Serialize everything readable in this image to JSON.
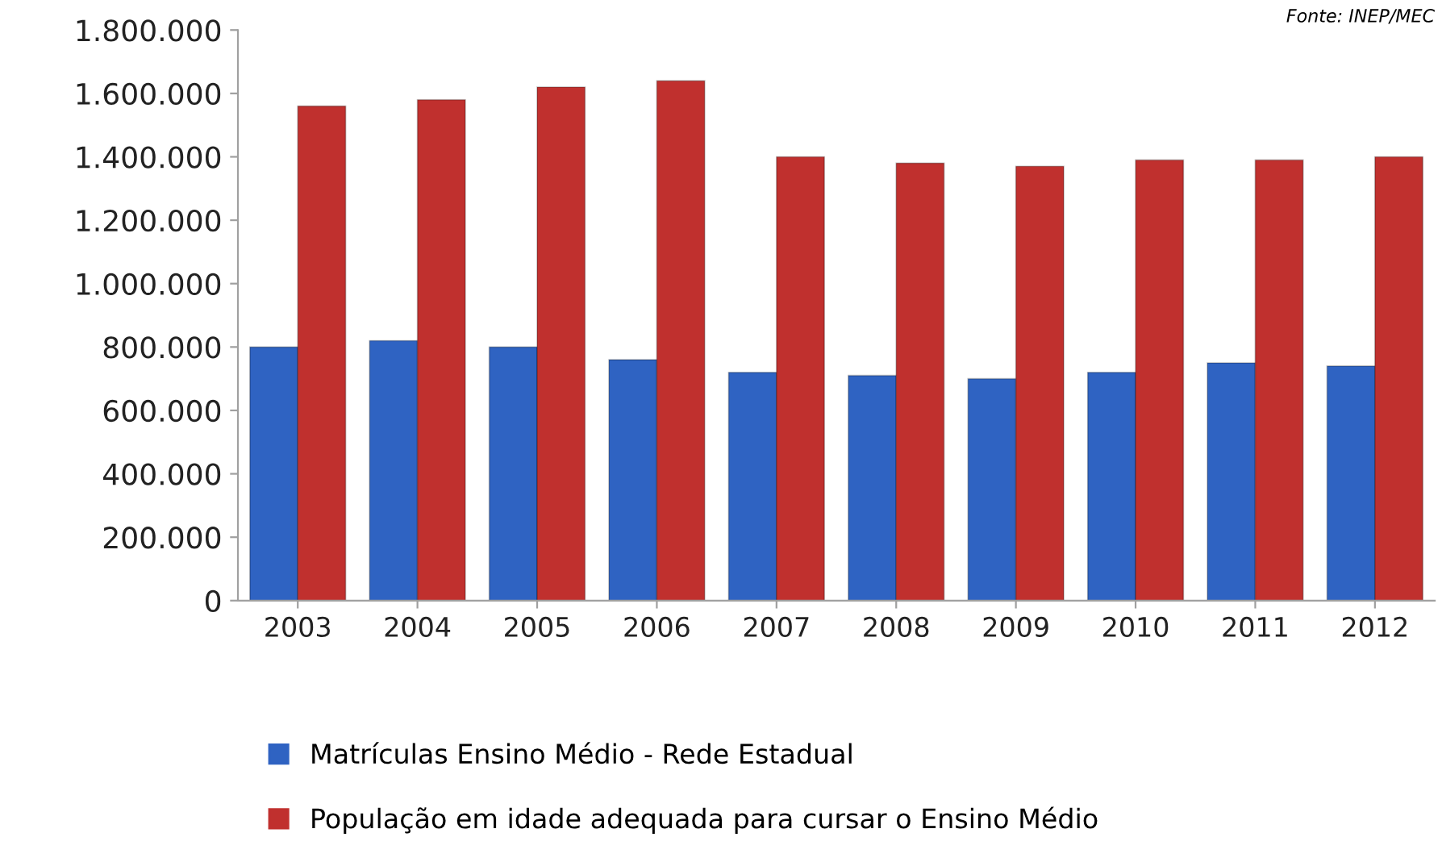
{
  "chart_data": {
    "type": "bar",
    "categories": [
      "2003",
      "2004",
      "2005",
      "2006",
      "2007",
      "2008",
      "2009",
      "2010",
      "2011",
      "2012"
    ],
    "series": [
      {
        "name": "Matrículas Ensino Médio - Rede Estadual",
        "color": "#2f63c2",
        "values": [
          800000,
          820000,
          800000,
          760000,
          720000,
          710000,
          700000,
          720000,
          750000,
          740000
        ]
      },
      {
        "name": "População em idade adequada para cursar o Ensino Médio",
        "color": "#c0302e",
        "values": [
          1560000,
          1580000,
          1620000,
          1640000,
          1400000,
          1380000,
          1370000,
          1390000,
          1390000,
          1400000
        ]
      }
    ],
    "ylim": [
      0,
      1800000
    ],
    "yticks": [
      0,
      {
        "value": 200000,
        "label": "200.000"
      },
      {
        "value": 400000,
        "label": "400.000"
      },
      {
        "value": 600000,
        "label": "600.000"
      },
      {
        "value": 800000,
        "label": "800.000"
      },
      {
        "value": 1000000,
        "label": "1.000.000"
      },
      {
        "value": 1200000,
        "label": "1.200.000"
      },
      {
        "value": 1400000,
        "label": "1.400.000"
      },
      {
        "value": 1600000,
        "label": "1.600.000"
      },
      {
        "value": 1800000,
        "label": "1.800.000"
      }
    ],
    "grid": false,
    "legend": "bottom",
    "annotations": [
      "Fonte: INEP/MEC"
    ]
  }
}
